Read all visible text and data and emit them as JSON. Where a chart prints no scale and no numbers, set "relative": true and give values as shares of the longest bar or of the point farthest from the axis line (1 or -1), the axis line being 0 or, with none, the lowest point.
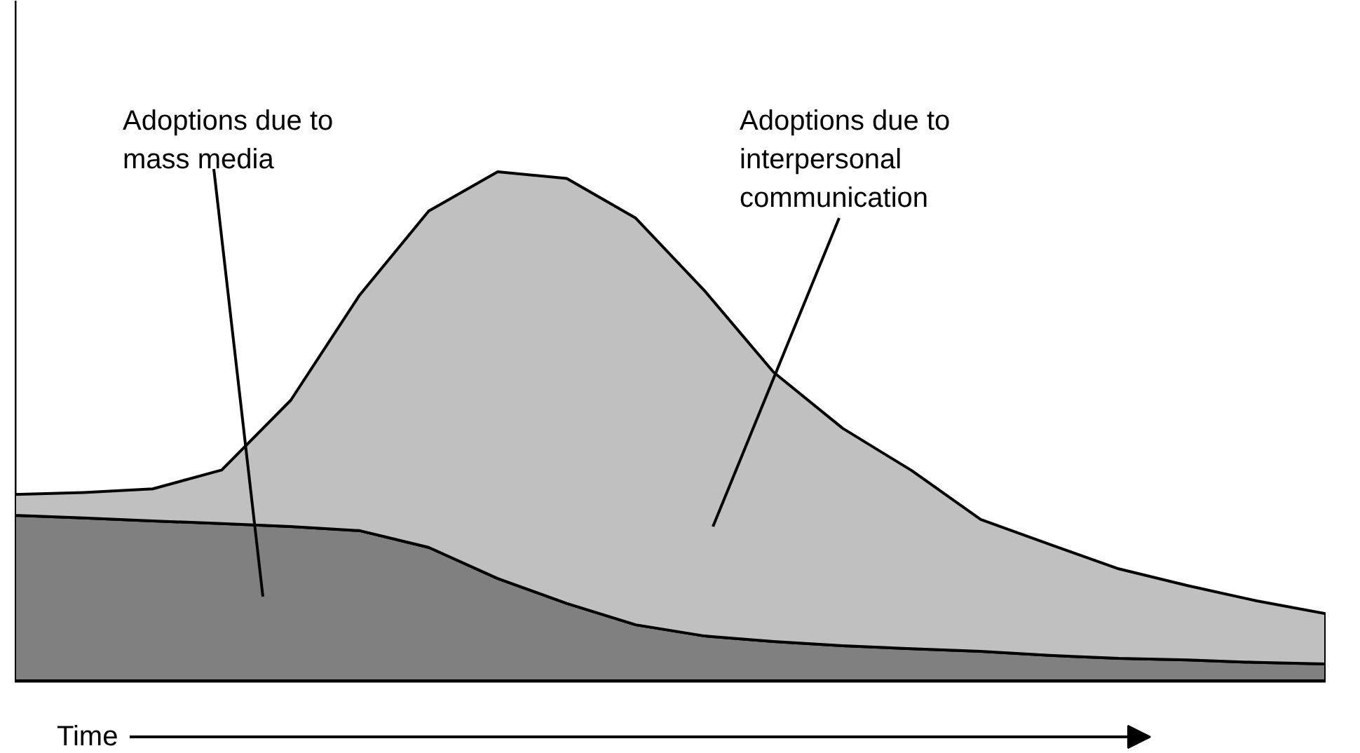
{
  "chart_data": {
    "type": "area",
    "stacked": true,
    "relative": true,
    "xlabel": "Time",
    "categories": [
      null,
      null,
      null,
      null,
      null,
      null,
      null,
      null,
      null,
      null,
      null,
      null,
      null,
      null,
      null,
      null,
      null,
      null,
      null,
      null
    ],
    "series": [
      {
        "color": "#808080",
        "values": [
          0.325,
          0.32,
          0.314,
          0.309,
          0.303,
          0.295,
          0.262,
          0.201,
          0.152,
          0.11,
          0.088,
          0.077,
          0.069,
          0.063,
          0.058,
          0.05,
          0.044,
          0.041,
          0.036,
          0.033
        ]
      },
      {
        "color": "#c0c0c0",
        "values": [
          0.041,
          0.05,
          0.063,
          0.105,
          0.248,
          0.463,
          0.661,
          0.799,
          0.835,
          0.799,
          0.678,
          0.529,
          0.427,
          0.35,
          0.259,
          0.218,
          0.176,
          0.146,
          0.121,
          0.099
        ]
      }
    ],
    "annotations": [
      "Adoptions due to\nmass media",
      "Adoptions due to\ninterpersonal\ncommunication"
    ]
  }
}
